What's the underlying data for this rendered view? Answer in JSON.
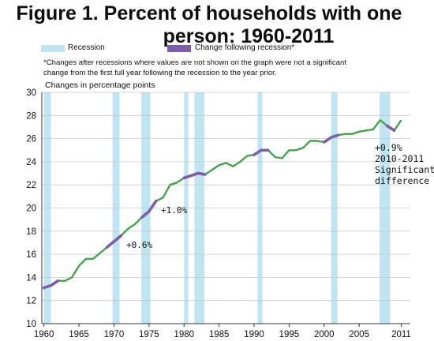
{
  "title_line1": "Figure 1. Percent of households with one",
  "title_line2": "person: 1960-2011",
  "legend": {
    "recession": "Recession",
    "change": "Change following recession*",
    "recession_color": "#bfe4f2",
    "change_color": "#7b5ea7",
    "line_color": "#45a24c"
  },
  "note_line1": "*Changes after recessions where values are not shown on the graph were not a significant",
  "note_line2": "change from the first full year following the recession to the year prior.",
  "annotations": {
    "a1": "+0.6%",
    "a2": "+1.0%",
    "a3_1": "+0.9%",
    "a3_2": "2010-2011",
    "a3_3": "Significant",
    "a3_4": "difference"
  },
  "chart_data": {
    "type": "line",
    "title": "Figure 1. Percent of households with one person: 1960-2011",
    "ylabel": "Changes in percentage points",
    "xlabel": "",
    "xlim": [
      1959.7,
      2012.3
    ],
    "ylim": [
      10,
      30
    ],
    "yticks": [
      10,
      12,
      14,
      16,
      18,
      20,
      22,
      24,
      26,
      28,
      30
    ],
    "xticks": [
      1960,
      1965,
      1970,
      1975,
      1980,
      1985,
      1990,
      1995,
      2000,
      2005,
      2011
    ],
    "grid": "horizontal",
    "recessions": [
      [
        1960,
        1961
      ],
      [
        1969.8,
        1970.8
      ],
      [
        1973.9,
        1975.2
      ],
      [
        1980,
        1980.6
      ],
      [
        1981.5,
        1982.9
      ],
      [
        1990.5,
        1991.2
      ],
      [
        2001,
        2001.9
      ],
      [
        2007.9,
        2009.4
      ]
    ],
    "highlights": [
      [
        1960,
        1962
      ],
      [
        1969,
        1971
      ],
      [
        1974,
        1976
      ],
      [
        1980,
        1983
      ],
      [
        1990,
        1992
      ],
      [
        2000,
        2002
      ],
      [
        2009,
        2010
      ]
    ],
    "x": [
      1960,
      1961,
      1962,
      1963,
      1964,
      1965,
      1966,
      1967,
      1968,
      1969,
      1970,
      1971,
      1972,
      1973,
      1974,
      1975,
      1976,
      1977,
      1978,
      1979,
      1980,
      1981,
      1982,
      1983,
      1984,
      1985,
      1986,
      1987,
      1988,
      1989,
      1990,
      1991,
      1992,
      1993,
      1994,
      1995,
      1996,
      1997,
      1998,
      1999,
      2000,
      2001,
      2002,
      2003,
      2004,
      2005,
      2006,
      2007,
      2008,
      2009,
      2010,
      2011
    ],
    "values": [
      13.1,
      13.3,
      13.7,
      13.7,
      14.0,
      15.0,
      15.6,
      15.6,
      16.1,
      16.6,
      17.1,
      17.6,
      18.2,
      18.6,
      19.2,
      19.7,
      20.6,
      20.9,
      22.0,
      22.2,
      22.6,
      22.8,
      23.0,
      22.9,
      23.3,
      23.7,
      23.9,
      23.6,
      24.0,
      24.5,
      24.6,
      25.0,
      25.0,
      24.4,
      24.3,
      25.0,
      25.0,
      25.2,
      25.8,
      25.8,
      25.7,
      26.1,
      26.3,
      26.4,
      26.4,
      26.6,
      26.7,
      26.8,
      27.6,
      27.1,
      26.7,
      27.6
    ]
  }
}
